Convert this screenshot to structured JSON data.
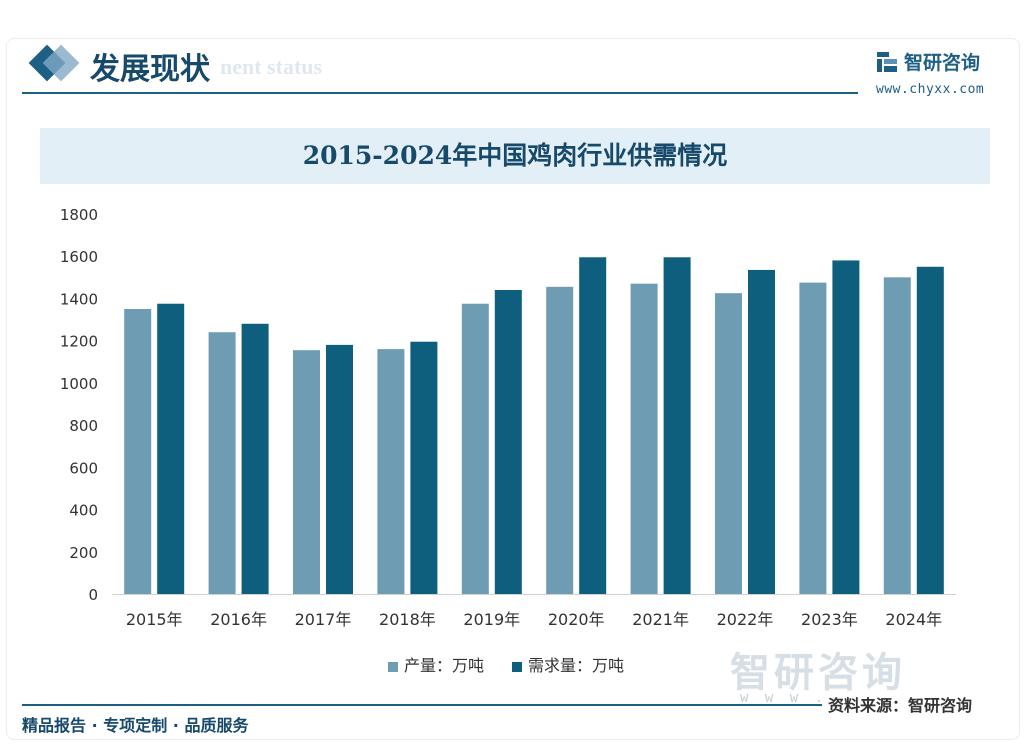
{
  "header": {
    "section_title": "发展现状",
    "section_title_en": "nent status"
  },
  "brand": {
    "name": "智研咨询",
    "url": "www.chyxx.com"
  },
  "chart_data": {
    "type": "bar",
    "title": "2015-2024年中国鸡肉行业供需情况",
    "categories": [
      "2015年",
      "2016年",
      "2017年",
      "2018年",
      "2019年",
      "2020年",
      "2021年",
      "2022年",
      "2023年",
      "2024年"
    ],
    "series": [
      {
        "name": "产量：万吨",
        "color": "#6d9cb3",
        "values": [
          1350,
          1240,
          1155,
          1160,
          1375,
          1455,
          1470,
          1425,
          1475,
          1500
        ]
      },
      {
        "name": "需求量：万吨",
        "color": "#0e5f7d",
        "values": [
          1375,
          1280,
          1180,
          1195,
          1440,
          1595,
          1595,
          1535,
          1580,
          1550
        ]
      }
    ],
    "ylim": [
      0,
      1800
    ],
    "yticks": [
      0,
      200,
      400,
      600,
      800,
      1000,
      1200,
      1400,
      1600,
      1800
    ],
    "grid": false,
    "legend_position": "bottom"
  },
  "watermark": {
    "text": "智研咨询",
    "www": "w w w ."
  },
  "source": "资料来源：智研咨询",
  "footer": "精品报告 · 专项定制 · 品质服务",
  "colors": {
    "accent": "#1e5f86",
    "title_bg": "#e2eff6"
  }
}
